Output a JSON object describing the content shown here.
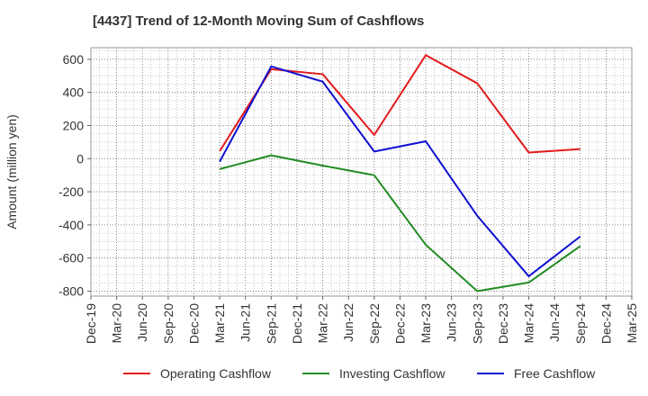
{
  "chart_data": {
    "type": "line",
    "title": "[4437]  Trend of 12-Month Moving Sum of Cashflows",
    "ylabel": "Amount (million yen)",
    "xlabel": "",
    "categories": [
      "Dec-19",
      "Mar-20",
      "Jun-20",
      "Sep-20",
      "Dec-20",
      "Mar-21",
      "Jun-21",
      "Sep-21",
      "Dec-21",
      "Mar-22",
      "Jun-22",
      "Sep-22",
      "Dec-22",
      "Mar-23",
      "Jun-23",
      "Sep-23",
      "Dec-23",
      "Mar-24",
      "Jun-24",
      "Sep-24",
      "Dec-24",
      "Mar-25"
    ],
    "ylim": [
      -830,
      670
    ],
    "yticks": [
      600,
      400,
      200,
      0,
      -200,
      -400,
      -600,
      -800
    ],
    "grid": true,
    "legend_position": "bottom",
    "series": [
      {
        "name": "Operating Cashflow",
        "color": "#e31a1c",
        "points": [
          {
            "x": "Mar-21",
            "y": 45
          },
          {
            "x": "Sep-21",
            "y": 540
          },
          {
            "x": "Mar-22",
            "y": 510
          },
          {
            "x": "Sep-22",
            "y": 143
          },
          {
            "x": "Mar-23",
            "y": 625
          },
          {
            "x": "Sep-23",
            "y": 455
          },
          {
            "x": "Mar-24",
            "y": 37
          },
          {
            "x": "Sep-24",
            "y": 58
          }
        ]
      },
      {
        "name": "Investing Cashflow",
        "color": "#238b23",
        "points": [
          {
            "x": "Mar-21",
            "y": -63
          },
          {
            "x": "Sep-21",
            "y": 20
          },
          {
            "x": "Mar-22",
            "y": -42
          },
          {
            "x": "Sep-22",
            "y": -100
          },
          {
            "x": "Mar-23",
            "y": -520
          },
          {
            "x": "Sep-23",
            "y": -800
          },
          {
            "x": "Mar-24",
            "y": -748
          },
          {
            "x": "Sep-24",
            "y": -528
          }
        ]
      },
      {
        "name": "Free Cashflow",
        "color": "#1010d0",
        "points": [
          {
            "x": "Mar-21",
            "y": -18
          },
          {
            "x": "Sep-21",
            "y": 557
          },
          {
            "x": "Mar-22",
            "y": 465
          },
          {
            "x": "Sep-22",
            "y": 43
          },
          {
            "x": "Mar-23",
            "y": 105
          },
          {
            "x": "Sep-23",
            "y": -345
          },
          {
            "x": "Mar-24",
            "y": -710
          },
          {
            "x": "Sep-24",
            "y": -470
          }
        ]
      }
    ]
  }
}
